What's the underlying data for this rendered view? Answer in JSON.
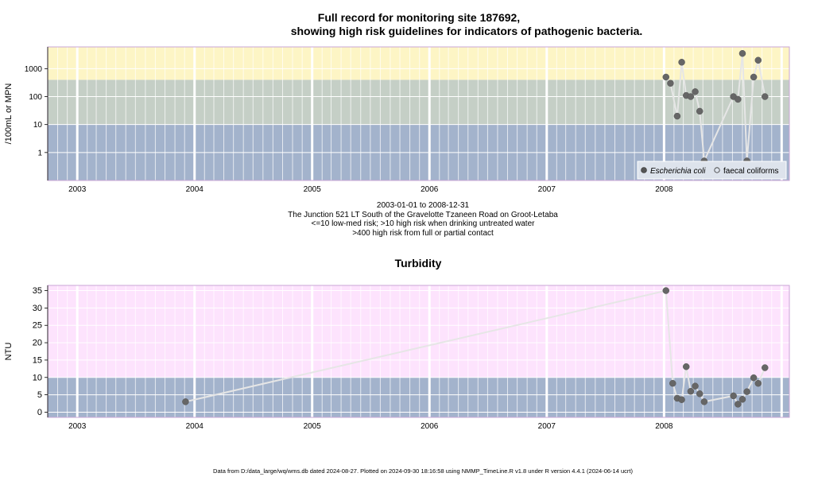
{
  "chart_data": [
    {
      "type": "scatter",
      "title": [
        "Full record for monitoring site 187692,",
        "showing high risk guidelines for indicators of pathogenic bacteria."
      ],
      "ylabel": "/100mL or MPN",
      "y_scale": "log",
      "ylim": [
        0.1,
        6000
      ],
      "y_ticks": [
        1,
        10,
        100,
        1000
      ],
      "y_tick_labels": [
        "1",
        "10",
        "100",
        "1000"
      ],
      "xlim": [
        "2002-10-01",
        "2009-01-25"
      ],
      "x_ticks": [
        "2003-01-01",
        "2004-01-01",
        "2005-01-01",
        "2006-01-01",
        "2007-01-01",
        "2008-01-01"
      ],
      "x_tick_labels": [
        "2003",
        "2004",
        "2005",
        "2006",
        "2007",
        "2008"
      ],
      "grid": true,
      "bands": [
        {
          "from": 0.1,
          "to": 10,
          "color": "#a3b3cc",
          "meaning": "<=10 low-med risk"
        },
        {
          "from": 10,
          "to": 400,
          "color": "#c5cfc6",
          "meaning": ">10 high risk when drinking untreated water"
        },
        {
          "from": 400,
          "to": 6000,
          "color": "#fdf5c5",
          "meaning": ">400 high risk from full or partial contact"
        }
      ],
      "legend_position": "bottom-right",
      "legend": [
        {
          "label": "Escherichia coli",
          "marker": "filled-circle",
          "italic": true
        },
        {
          "label": "faecal coliforms",
          "marker": "open-circle",
          "italic": false
        }
      ],
      "series": [
        {
          "name": "Escherichia coli",
          "x": [
            "2008-01-07",
            "2008-01-21",
            "2008-02-11",
            "2008-02-25",
            "2008-03-10",
            "2008-03-24",
            "2008-04-07",
            "2008-04-21",
            "2008-05-05",
            "2008-08-04",
            "2008-08-18",
            "2008-09-01",
            "2008-09-15",
            "2008-10-06",
            "2008-10-20",
            "2008-11-10"
          ],
          "y": [
            500,
            300,
            20,
            1700,
            110,
            100,
            150,
            30,
            0.5,
            100,
            80,
            3500,
            0.5,
            500,
            2000,
            100
          ]
        }
      ]
    },
    {
      "type": "line",
      "title": "Turbidity",
      "ylabel": "NTU",
      "ylim": [
        -1.5,
        36.5
      ],
      "y_ticks": [
        0,
        5,
        10,
        15,
        20,
        25,
        30,
        35
      ],
      "y_tick_labels": [
        "0",
        "5",
        "10",
        "15",
        "20",
        "25",
        "30",
        "35"
      ],
      "xlim": [
        "2002-10-01",
        "2009-01-25"
      ],
      "x_ticks": [
        "2003-01-01",
        "2004-01-01",
        "2005-01-01",
        "2006-01-01",
        "2007-01-01",
        "2008-01-01"
      ],
      "x_tick_labels": [
        "2003",
        "2004",
        "2005",
        "2006",
        "2007",
        "2008"
      ],
      "grid": true,
      "bands": [
        {
          "from": -1.5,
          "to": 10,
          "color": "#a3b3cc"
        },
        {
          "from": 10,
          "to": 36.5,
          "color": "#fde3fd"
        }
      ],
      "series": [
        {
          "name": "",
          "x": [
            "2003-12-04",
            "2008-01-07",
            "2008-01-28",
            "2008-02-11",
            "2008-02-25",
            "2008-03-10",
            "2008-03-24",
            "2008-04-07",
            "2008-04-21",
            "2008-05-05",
            "2008-08-04",
            "2008-08-18",
            "2008-09-01",
            "2008-09-15",
            "2008-10-06",
            "2008-10-20",
            "2008-11-10"
          ],
          "y": [
            3,
            35,
            8.3,
            4,
            3.6,
            13.1,
            6,
            7.5,
            5.3,
            3,
            4.7,
            2.3,
            3.7,
            5.9,
            9.9,
            8.3,
            12.8
          ]
        }
      ]
    }
  ],
  "info": {
    "date_range": "2003-01-01 to 2008-12-31",
    "location": "The Junction 521 LT South of the Gravelotte Tzaneen Road on Groot-Letaba",
    "guideline_1": "<=10 low-med risk; >10 high risk when drinking untreated water",
    "guideline_2": ">400 high risk from full or partial contact"
  },
  "footer": "Data from D:/data_large/wq/wms.db dated 2024-08-27. Plotted on 2024-09-30 18:16:58 using NMMP_TimeLine.R v1.8 under R version 4.4.1 (2024-06-14 ucrt)",
  "colors": {
    "point_fill": "#666666",
    "line": "#e6e6e6",
    "plot_border": "#c9a6d6",
    "gridline_major": "#ffffff"
  }
}
